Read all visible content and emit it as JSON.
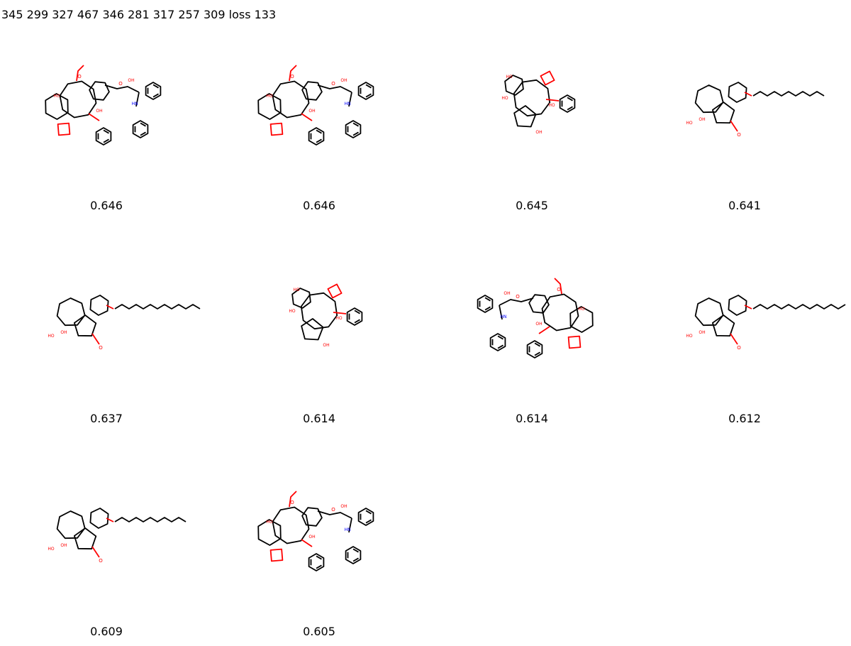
{
  "header": {
    "text": "345 299 327 467 346 281 317 257 309 loss 133"
  },
  "molecules": [
    {
      "score": "0.646",
      "type": "taxane-sidechain"
    },
    {
      "score": "0.646",
      "type": "taxane-sidechain"
    },
    {
      "score": "0.645",
      "type": "taxane-compact"
    },
    {
      "score": "0.641",
      "type": "ingenane-chain-10"
    },
    {
      "score": "0.637",
      "type": "ingenane-chain-12"
    },
    {
      "score": "0.614",
      "type": "taxane-compact"
    },
    {
      "score": "0.614",
      "type": "taxane-sidechain-mirror"
    },
    {
      "score": "0.612",
      "type": "ingenane-chain-16"
    },
    {
      "score": "0.609",
      "type": "ingenane-chain-10"
    },
    {
      "score": "0.605",
      "type": "taxane-sidechain"
    }
  ],
  "colors": {
    "bond": "#000000",
    "oxygen": "#ff0000",
    "nitrogen": "#0000ff"
  }
}
